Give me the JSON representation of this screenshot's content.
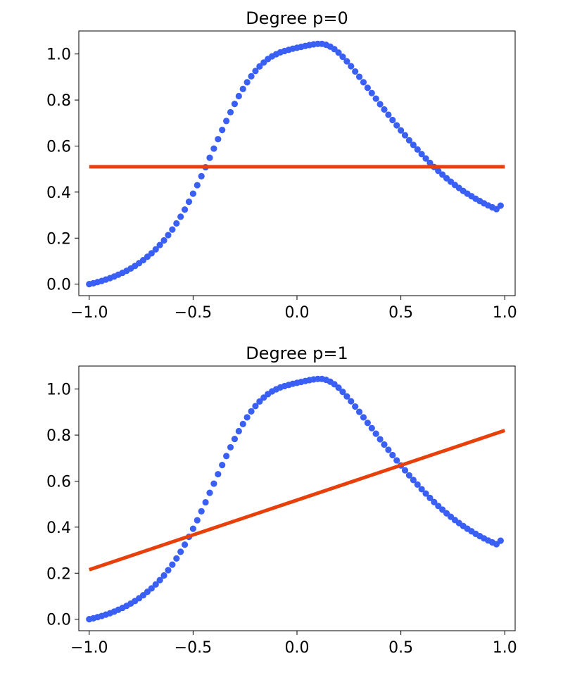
{
  "chart_data": [
    {
      "type": "scatter",
      "title": "Degree p=0",
      "xlabel": "",
      "ylabel": "",
      "xlim": [
        -1.05,
        1.05
      ],
      "ylim": [
        -0.05,
        1.1
      ],
      "xticks": [
        -1.0,
        -0.5,
        0.0,
        0.5,
        1.0
      ],
      "yticks": [
        0.0,
        0.2,
        0.4,
        0.6,
        0.8,
        1.0
      ],
      "xtick_labels": [
        "−1.0",
        "−0.5",
        "0.0",
        "0.5",
        "1.0"
      ],
      "ytick_labels": [
        "0.0",
        "0.2",
        "0.4",
        "0.6",
        "0.8",
        "1.0"
      ],
      "grid": false,
      "series": [
        {
          "kind": "scatter",
          "color": "#3a5ff5",
          "x": [
            -1.0,
            -0.98,
            -0.96,
            -0.94,
            -0.92,
            -0.9,
            -0.88,
            -0.86,
            -0.84,
            -0.82,
            -0.8,
            -0.78,
            -0.76,
            -0.74,
            -0.72,
            -0.7,
            -0.68,
            -0.66,
            -0.64,
            -0.62,
            -0.6,
            -0.58,
            -0.56,
            -0.54,
            -0.52,
            -0.5,
            -0.48,
            -0.46,
            -0.44,
            -0.42,
            -0.4,
            -0.38,
            -0.36,
            -0.34,
            -0.32,
            -0.3,
            -0.28,
            -0.26,
            -0.24,
            -0.22,
            -0.2,
            -0.18,
            -0.16,
            -0.14,
            -0.12,
            -0.1,
            -0.08,
            -0.06,
            -0.04,
            -0.02,
            0.0,
            0.02,
            0.04,
            0.06,
            0.08,
            0.1,
            0.12,
            0.14,
            0.16,
            0.18,
            0.2,
            0.22,
            0.24,
            0.26,
            0.28,
            0.3,
            0.32,
            0.34,
            0.36,
            0.38,
            0.4,
            0.42,
            0.44,
            0.46,
            0.48,
            0.5,
            0.52,
            0.54,
            0.56,
            0.58,
            0.6,
            0.62,
            0.64,
            0.66,
            0.68,
            0.7,
            0.72,
            0.74,
            0.76,
            0.78,
            0.8,
            0.82,
            0.84,
            0.86,
            0.88,
            0.9,
            0.92,
            0.94,
            0.96,
            0.98
          ],
          "y": [
            0.0,
            0.004,
            0.009,
            0.014,
            0.02,
            0.026,
            0.033,
            0.041,
            0.049,
            0.058,
            0.068,
            0.079,
            0.091,
            0.104,
            0.119,
            0.134,
            0.151,
            0.17,
            0.19,
            0.213,
            0.237,
            0.264,
            0.293,
            0.324,
            0.358,
            0.393,
            0.43,
            0.469,
            0.508,
            0.549,
            0.589,
            0.63,
            0.67,
            0.709,
            0.747,
            0.783,
            0.817,
            0.848,
            0.877,
            0.903,
            0.926,
            0.946,
            0.963,
            0.978,
            0.99,
            0.999,
            1.007,
            1.013,
            1.018,
            1.023,
            1.027,
            1.031,
            1.035,
            1.039,
            1.042,
            1.044,
            1.044,
            1.04,
            1.032,
            1.021,
            1.006,
            0.988,
            0.968,
            0.947,
            0.924,
            0.901,
            0.877,
            0.853,
            0.83,
            0.806,
            0.782,
            0.759,
            0.736,
            0.713,
            0.69,
            0.668,
            0.647,
            0.625,
            0.605,
            0.585,
            0.565,
            0.546,
            0.527,
            0.509,
            0.492,
            0.476,
            0.46,
            0.445,
            0.431,
            0.418,
            0.405,
            0.393,
            0.382,
            0.371,
            0.361,
            0.351,
            0.342,
            0.334,
            0.326,
            0.341
          ]
        },
        {
          "kind": "line",
          "color": "#e8400b",
          "x": [
            -1.0,
            1.0
          ],
          "y": [
            0.51,
            0.51
          ]
        }
      ]
    },
    {
      "type": "scatter",
      "title": "Degree p=1",
      "xlabel": "",
      "ylabel": "",
      "xlim": [
        -1.05,
        1.05
      ],
      "ylim": [
        -0.05,
        1.1
      ],
      "xticks": [
        -1.0,
        -0.5,
        0.0,
        0.5,
        1.0
      ],
      "yticks": [
        0.0,
        0.2,
        0.4,
        0.6,
        0.8,
        1.0
      ],
      "xtick_labels": [
        "−1.0",
        "−0.5",
        "0.0",
        "0.5",
        "1.0"
      ],
      "ytick_labels": [
        "0.0",
        "0.2",
        "0.4",
        "0.6",
        "0.8",
        "1.0"
      ],
      "grid": false,
      "series": [
        {
          "kind": "scatter",
          "color": "#3a5ff5",
          "x": [
            -1.0,
            -0.98,
            -0.96,
            -0.94,
            -0.92,
            -0.9,
            -0.88,
            -0.86,
            -0.84,
            -0.82,
            -0.8,
            -0.78,
            -0.76,
            -0.74,
            -0.72,
            -0.7,
            -0.68,
            -0.66,
            -0.64,
            -0.62,
            -0.6,
            -0.58,
            -0.56,
            -0.54,
            -0.52,
            -0.5,
            -0.48,
            -0.46,
            -0.44,
            -0.42,
            -0.4,
            -0.38,
            -0.36,
            -0.34,
            -0.32,
            -0.3,
            -0.28,
            -0.26,
            -0.24,
            -0.22,
            -0.2,
            -0.18,
            -0.16,
            -0.14,
            -0.12,
            -0.1,
            -0.08,
            -0.06,
            -0.04,
            -0.02,
            0.0,
            0.02,
            0.04,
            0.06,
            0.08,
            0.1,
            0.12,
            0.14,
            0.16,
            0.18,
            0.2,
            0.22,
            0.24,
            0.26,
            0.28,
            0.3,
            0.32,
            0.34,
            0.36,
            0.38,
            0.4,
            0.42,
            0.44,
            0.46,
            0.48,
            0.5,
            0.52,
            0.54,
            0.56,
            0.58,
            0.6,
            0.62,
            0.64,
            0.66,
            0.68,
            0.7,
            0.72,
            0.74,
            0.76,
            0.78,
            0.8,
            0.82,
            0.84,
            0.86,
            0.88,
            0.9,
            0.92,
            0.94,
            0.96,
            0.98
          ],
          "y": [
            0.0,
            0.004,
            0.009,
            0.014,
            0.02,
            0.026,
            0.033,
            0.041,
            0.049,
            0.058,
            0.068,
            0.079,
            0.091,
            0.104,
            0.119,
            0.134,
            0.151,
            0.17,
            0.19,
            0.213,
            0.237,
            0.264,
            0.293,
            0.324,
            0.358,
            0.393,
            0.43,
            0.469,
            0.508,
            0.549,
            0.589,
            0.63,
            0.67,
            0.709,
            0.747,
            0.783,
            0.817,
            0.848,
            0.877,
            0.903,
            0.926,
            0.946,
            0.963,
            0.978,
            0.99,
            0.999,
            1.007,
            1.013,
            1.018,
            1.023,
            1.027,
            1.031,
            1.035,
            1.039,
            1.042,
            1.044,
            1.044,
            1.04,
            1.032,
            1.021,
            1.006,
            0.988,
            0.968,
            0.947,
            0.924,
            0.901,
            0.877,
            0.853,
            0.83,
            0.806,
            0.782,
            0.759,
            0.736,
            0.713,
            0.69,
            0.668,
            0.647,
            0.625,
            0.605,
            0.585,
            0.565,
            0.546,
            0.527,
            0.509,
            0.492,
            0.476,
            0.46,
            0.445,
            0.431,
            0.418,
            0.405,
            0.393,
            0.382,
            0.371,
            0.361,
            0.351,
            0.342,
            0.334,
            0.326,
            0.341
          ]
        },
        {
          "kind": "line",
          "color": "#e8400b",
          "x": [
            -1.0,
            1.0
          ],
          "y": [
            0.215,
            0.82
          ]
        }
      ]
    }
  ]
}
